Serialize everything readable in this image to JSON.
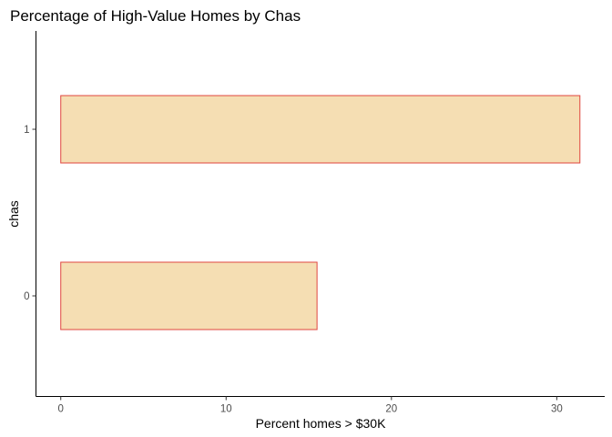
{
  "chart_data": {
    "type": "bar",
    "orientation": "horizontal",
    "title": "Percentage of High-Value Homes by Chas",
    "xlabel": "Percent homes > $30K",
    "ylabel": "chas",
    "categories": [
      "0",
      "1"
    ],
    "values": [
      15.5,
      31.4
    ],
    "xlim": [
      -1.5,
      32.9
    ],
    "x_ticks": [
      0,
      10,
      20,
      30
    ],
    "grid": false,
    "legend": "none",
    "colors": {
      "bar_fill": "#f5deb3",
      "bar_stroke": "#e0453f",
      "axis": "#000000",
      "tick_label": "#4d4d4d"
    }
  }
}
